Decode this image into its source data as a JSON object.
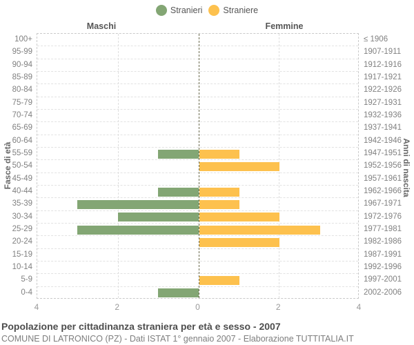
{
  "legend": {
    "items": [
      {
        "label": "Stranieri",
        "color": "#83a674"
      },
      {
        "label": "Straniere",
        "color": "#fdc14e"
      }
    ]
  },
  "headers": {
    "left": "Maschi",
    "right": "Femmine"
  },
  "axes": {
    "left_title": "Fasce di età",
    "right_title": "Anni di nascita",
    "x_ticks": [
      "4",
      "2",
      "0",
      "2",
      "4"
    ]
  },
  "footer": {
    "title": "Popolazione per cittadinanza straniera per età e sesso - 2007",
    "subtitle": "COMUNE DI LATRONICO (PZ) - Dati ISTAT 1° gennaio 2007 - Elaborazione TUTTITALIA.IT"
  },
  "chart_data": {
    "type": "bar",
    "variant": "population-pyramid",
    "title": "Popolazione per cittadinanza straniera per età e sesso - 2007",
    "categories": [
      "100+",
      "95-99",
      "90-94",
      "85-89",
      "80-84",
      "75-79",
      "70-74",
      "65-69",
      "60-64",
      "55-59",
      "50-54",
      "45-49",
      "40-44",
      "35-39",
      "30-34",
      "25-29",
      "20-24",
      "15-19",
      "10-14",
      "5-9",
      "0-4"
    ],
    "right_categories": [
      "≤ 1906",
      "1907-1911",
      "1912-1916",
      "1917-1921",
      "1922-1926",
      "1927-1931",
      "1932-1936",
      "1937-1941",
      "1942-1946",
      "1947-1951",
      "1952-1956",
      "1957-1961",
      "1962-1966",
      "1967-1971",
      "1972-1976",
      "1977-1981",
      "1982-1986",
      "1987-1991",
      "1992-1996",
      "1997-2001",
      "2002-2006"
    ],
    "series": [
      {
        "name": "Stranieri",
        "side": "left",
        "color": "#83a674",
        "values": [
          0,
          0,
          0,
          0,
          0,
          0,
          0,
          0,
          0,
          1,
          0,
          0,
          1,
          3,
          2,
          3,
          0,
          0,
          0,
          0,
          1
        ]
      },
      {
        "name": "Straniere",
        "side": "right",
        "color": "#fdc14e",
        "values": [
          0,
          0,
          0,
          0,
          0,
          0,
          0,
          0,
          0,
          1,
          2,
          0,
          1,
          1,
          2,
          3,
          2,
          0,
          0,
          1,
          0
        ]
      }
    ],
    "xlim": [
      0,
      4
    ],
    "x_tick_values": [
      4,
      2,
      0,
      2,
      4
    ],
    "ylabel_left": "Fasce di età",
    "ylabel_right": "Anni di nascita",
    "grid": true,
    "legend_position": "top"
  }
}
